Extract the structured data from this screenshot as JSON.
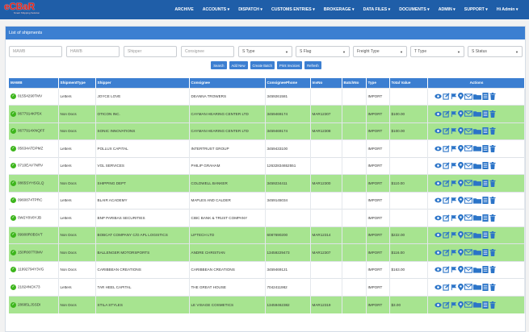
{
  "brand": {
    "name": "eCBaR",
    "tagline": "Smart Shipping Solution"
  },
  "nav": [
    {
      "label": "ARCHIVE"
    },
    {
      "label": "ACCOUNTS ▾"
    },
    {
      "label": "DISPATCH ▾"
    },
    {
      "label": "CUSTOMS ENTRIES ▾"
    },
    {
      "label": "BROKERAGE ▾"
    },
    {
      "label": "DATA FILES ▾"
    },
    {
      "label": "DOCUMENTS ▾"
    },
    {
      "label": "ADMIN ▾"
    },
    {
      "label": "SUPPORT ▾"
    },
    {
      "label": "Hi Admin ▾"
    }
  ],
  "panel": {
    "title": "List of shipments"
  },
  "filters": {
    "mawb_placeholder": "MAWB",
    "hawb_placeholder": "HAWB",
    "shipper_placeholder": "Shipper",
    "consignee_placeholder": "Consignee",
    "stype": "S Type",
    "sflag": "S Flag",
    "freight_type": "Freight Type",
    "ttype": "T Type",
    "sstatus": "S Status"
  },
  "buttons": {
    "search": "Search",
    "add_new": "Add New",
    "create_batch": "Create Batch",
    "print_invoices": "Print Invoices",
    "refresh": "Refresh"
  },
  "table": {
    "headers": [
      "MAWB",
      "ShipmentType",
      "Shipper",
      "Consignee",
      "ConsigneePhone",
      "InvNo",
      "BatchNo",
      "Type",
      "Total Value",
      "Actions"
    ],
    "rows": [
      {
        "hl": false,
        "mawb": "01554290TMV",
        "stype": "Letters",
        "shipper": "JOYCE LOVE",
        "consignee": "DEANNA TROWERS",
        "phone": "3459261581",
        "inv": "",
        "batch": "",
        "type": "IMPORT",
        "total": ""
      },
      {
        "hl": true,
        "mawb": "0677914KP5X",
        "stype": "Non Docs",
        "shipper": "OTICON INC.",
        "consignee": "CAYMAN HEARING CENTER LTD",
        "phone": "3459469174",
        "inv": "MAR12307",
        "batch": "",
        "type": "IMPORT",
        "total": "$100.00"
      },
      {
        "hl": true,
        "mawb": "0677914XNQFF",
        "stype": "Non Docs",
        "shipper": "SONIC INNOVATIONS",
        "consignee": "CAYMAN HEARING CENTER LTD",
        "phone": "3459469174",
        "inv": "MAR12308",
        "batch": "",
        "type": "IMPORT",
        "total": "$100.00"
      },
      {
        "hl": false,
        "mawb": "05634ATDPMZ",
        "stype": "Letters",
        "shipper": "POLLUX CAPITAL",
        "consignee": "INTERTRUST GROUP",
        "phone": "3459433100",
        "inv": "",
        "batch": "",
        "type": "IMPORT",
        "total": ""
      },
      {
        "hl": false,
        "mawb": "0710EAV7NRV",
        "stype": "Letters",
        "shipper": "VGL SERVICES",
        "consignee": "PHILIP GRAHAM",
        "phone": "12632834652551",
        "inv": "",
        "batch": "",
        "type": "IMPORT",
        "total": ""
      },
      {
        "hl": true,
        "mawb": "0865SYHSGLQ",
        "stype": "Non Docs",
        "shipper": "SHIPPING DEPT",
        "consignee": "COLDWELL BANKER",
        "phone": "3459234411",
        "inv": "MAR12300",
        "batch": "",
        "type": "IMPORT",
        "total": "$110.00"
      },
      {
        "hl": false,
        "mawb": "0960874TPRC",
        "stype": "Letters",
        "shipper": "BLAIR ACADEMY",
        "consignee": "MAPLES AND CALDER",
        "phone": "3459145034",
        "inv": "",
        "batch": "",
        "type": "IMPORT",
        "total": ""
      },
      {
        "hl": false,
        "mawb": "0W2Y8V8YJB",
        "stype": "Letters",
        "shipper": "BNP PARIBAS SECURITIES",
        "consignee": "CIBC BANK & TRUST COMPANY",
        "phone": "",
        "inv": "",
        "batch": "",
        "type": "IMPORT",
        "total": ""
      },
      {
        "hl": true,
        "mawb": "09908R0BSVT",
        "stype": "Non Docs",
        "shipper": "BOBCAT COMPANY C/O APL LOGISTICS",
        "consignee": "LIFTECH LTD",
        "phone": "6087690200",
        "inv": "MAR12314",
        "batch": "",
        "type": "IMPORT",
        "total": "$222.00"
      },
      {
        "hl": true,
        "mawb": "150R007T0MV",
        "stype": "Non Docs",
        "shipper": "BALLENGER MOTORSPORTS",
        "consignee": "ANDRE CHRISTIAN",
        "phone": "13459229473",
        "inv": "MAR12307",
        "batch": "",
        "type": "IMPORT",
        "total": "$116.00"
      },
      {
        "hl": false,
        "mawb": "11992794Y3VG",
        "stype": "Non Docs",
        "shipper": "CARIBBEAN CREATIONS",
        "consignee": "CARIBBEAN CREATIONS",
        "phone": "3459469121",
        "inv": "",
        "batch": "",
        "type": "IMPORT",
        "total": "$163.00"
      },
      {
        "hl": false,
        "mawb": "21824NCK73",
        "stype": "Letters",
        "shipper": "TAR HEEL CAPITAL",
        "consignee": "THE GREAT HOUSE",
        "phone": "7042411982",
        "inv": "",
        "batch": "",
        "type": "IMPORT",
        "total": ""
      },
      {
        "hl": true,
        "mawb": "28685LJSSDI",
        "stype": "Non Docs",
        "shipper": "STILA STYLES",
        "consignee": "LE VISAGE COSMETICS",
        "phone": "13459462382",
        "inv": "MAR12319",
        "batch": "",
        "type": "IMPORT",
        "total": "$3.00"
      }
    ]
  },
  "colors": {
    "topbar": "#1f5ea8",
    "header": "#3c7fd1",
    "highlight": "#a7e490",
    "action": "#2b74c8",
    "logo": "#e8261b"
  },
  "action_icons": [
    "view-icon",
    "edit-icon",
    "flag-icon",
    "location-pin-icon",
    "mail-icon",
    "folder-icon",
    "list-icon",
    "delete-icon"
  ]
}
